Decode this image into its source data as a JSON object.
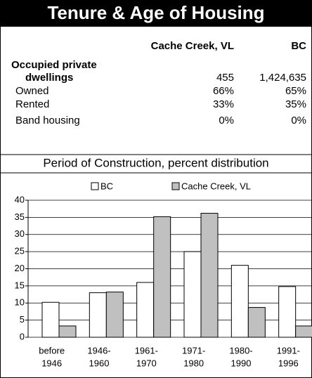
{
  "header": {
    "title": "Tenure & Age of Housing"
  },
  "table": {
    "columns": [
      "Cache Creek, VL",
      "BC"
    ],
    "rows": [
      {
        "label": [
          "Occupied private",
          "dwellings"
        ],
        "values": [
          "455",
          "1,424,635"
        ]
      },
      {
        "label": [
          "Owned"
        ],
        "values": [
          "66%",
          "65%"
        ]
      },
      {
        "label": [
          "Rented"
        ],
        "values": [
          "33%",
          "35%"
        ]
      },
      {
        "label": [
          "Band housing"
        ],
        "values": [
          "0%",
          "0%"
        ]
      }
    ]
  },
  "chart_data": {
    "type": "bar",
    "title": "Period of Construction, percent distribution",
    "categories": [
      [
        "before",
        "1946"
      ],
      [
        "1946-",
        "1960"
      ],
      [
        "1961-",
        "1970"
      ],
      [
        "1971-",
        "1980"
      ],
      [
        "1980-",
        "1990"
      ],
      [
        "1991-",
        "1996"
      ]
    ],
    "series": [
      {
        "name": "BC",
        "color": "#ffffff",
        "values": [
          10.2,
          13,
          16,
          25,
          21,
          14.8
        ]
      },
      {
        "name": "Cache Creek, VL",
        "color": "#c0c0c0",
        "values": [
          3.3,
          13.2,
          35.2,
          36.2,
          8.7,
          3.3
        ]
      }
    ],
    "ylim": [
      0,
      40
    ],
    "yticks": [
      0,
      5,
      10,
      15,
      20,
      25,
      30,
      35,
      40
    ],
    "grid": true
  }
}
